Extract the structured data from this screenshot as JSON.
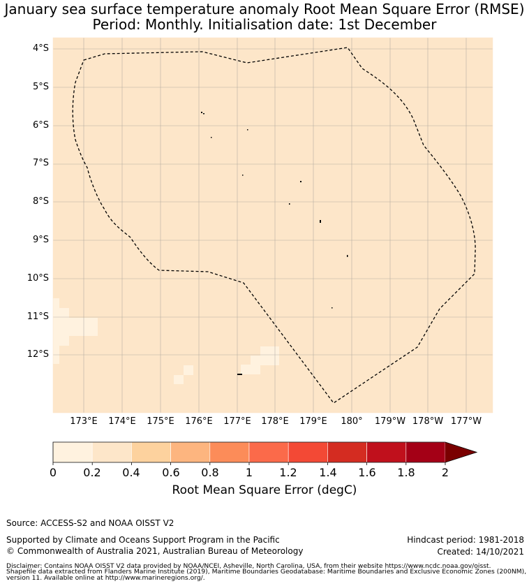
{
  "title_line1": "January sea surface temperature anomaly Root Mean Square Error (RMSE)",
  "title_line2": "Period: Monthly. Initialisation date: 1st December",
  "map": {
    "lat_labels": [
      "4°S",
      "5°S",
      "6°S",
      "7°S",
      "8°S",
      "9°S",
      "10°S",
      "11°S",
      "12°S"
    ],
    "lon_labels": [
      "173°E",
      "174°E",
      "175°E",
      "176°E",
      "177°E",
      "178°E",
      "179°E",
      "180°",
      "179°W",
      "178°W",
      "177°W"
    ],
    "background_color": "#fde6c9",
    "gridlines": true,
    "boundary_style": "dashed"
  },
  "colorbar": {
    "ticks": [
      "0",
      "0.2",
      "0.4",
      "0.6",
      "0.8",
      "1",
      "1.2",
      "1.4",
      "1.6",
      "1.8",
      "2"
    ],
    "colors": [
      "#fff2df",
      "#fde6c9",
      "#fdd29e",
      "#fdb57f",
      "#fc8c59",
      "#fb6a4a",
      "#f34935",
      "#d42c21",
      "#c0101c",
      "#a40016"
    ],
    "extend_color": "#7a0000",
    "label": "Root Mean Square Error (degC)"
  },
  "footer": {
    "source": "Source: ACCESS-S2 and NOAA OISST V2",
    "support": "Supported by Climate and Oceans Support Program in the Pacific",
    "copyright": "© Commonwealth of Australia 2021, Australian Bureau of Meteorology",
    "hindcast": "Hindcast period: 1981-2018",
    "created": "Created: 14/10/2021",
    "disclaimer1": "Disclaimer: Contains NOAA OISST V2 data provided by NOAA/NCEI, Asheville, North Carolina, USA, from their website https://www.ncdc.noaa.gov/oisst.",
    "disclaimer2": "Shapefile data extracted from Flanders Marine Institute (2019), Maritime Boundaries Geodatabase: Maritime Boundaries and Exclusive Economic Zones (200NM),",
    "disclaimer3": "version 11. Available online at http://www.marineregions.org/."
  }
}
